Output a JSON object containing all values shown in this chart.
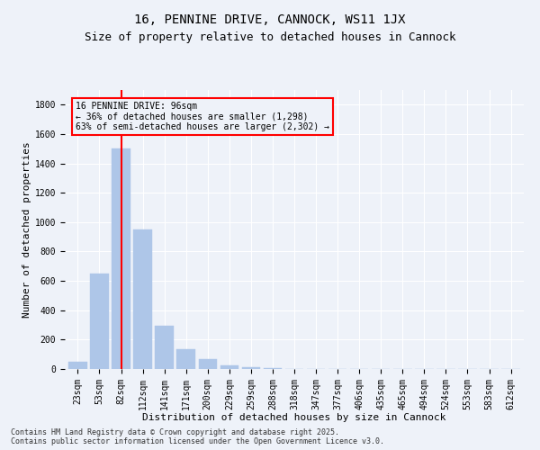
{
  "title": "16, PENNINE DRIVE, CANNOCK, WS11 1JX",
  "subtitle": "Size of property relative to detached houses in Cannock",
  "xlabel": "Distribution of detached houses by size in Cannock",
  "ylabel": "Number of detached properties",
  "categories": [
    "23sqm",
    "53sqm",
    "82sqm",
    "112sqm",
    "141sqm",
    "171sqm",
    "200sqm",
    "229sqm",
    "259sqm",
    "288sqm",
    "318sqm",
    "347sqm",
    "377sqm",
    "406sqm",
    "435sqm",
    "465sqm",
    "494sqm",
    "524sqm",
    "553sqm",
    "583sqm",
    "612sqm"
  ],
  "values": [
    50,
    650,
    1500,
    950,
    295,
    135,
    65,
    25,
    12,
    5,
    3,
    2,
    2,
    1,
    0,
    0,
    0,
    0,
    0,
    0,
    0
  ],
  "bar_color": "#aec6e8",
  "bar_edge_color": "#aec6e8",
  "vline_index": 2,
  "vline_color": "red",
  "annotation_line1": "16 PENNINE DRIVE: 96sqm",
  "annotation_line2": "← 36% of detached houses are smaller (1,298)",
  "annotation_line3": "63% of semi-detached houses are larger (2,302) →",
  "annotation_box_color": "red",
  "ylim": [
    0,
    1900
  ],
  "yticks": [
    0,
    200,
    400,
    600,
    800,
    1000,
    1200,
    1400,
    1600,
    1800
  ],
  "title_fontsize": 10,
  "subtitle_fontsize": 9,
  "xlabel_fontsize": 8,
  "ylabel_fontsize": 8,
  "tick_fontsize": 7,
  "annotation_fontsize": 7,
  "footer_text": "Contains HM Land Registry data © Crown copyright and database right 2025.\nContains public sector information licensed under the Open Government Licence v3.0.",
  "footer_fontsize": 6,
  "background_color": "#eef2f9",
  "grid_color": "#ffffff"
}
